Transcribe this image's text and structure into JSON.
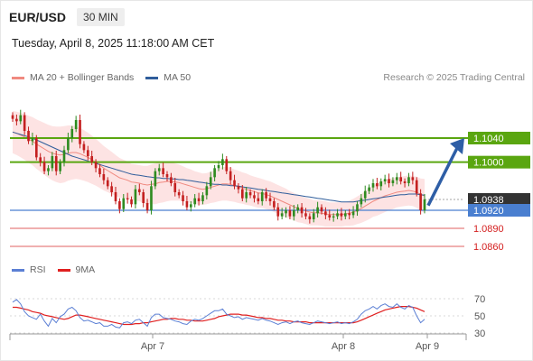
{
  "header": {
    "symbol": "EUR/USD",
    "timeframe": "30 MIN",
    "datetime": "Tuesday, April 8, 2025 11:18:00 AM CET",
    "credit": "Research © 2025 Trading Central"
  },
  "legend_main": [
    {
      "label": "MA 20 + Bollinger Bands",
      "color": "#f08a80"
    },
    {
      "label": "MA 50",
      "color": "#2f5d9b"
    }
  ],
  "legend_rsi": [
    {
      "label": "RSI",
      "color": "#5b7fd4"
    },
    {
      "label": "9MA",
      "color": "#e02020"
    }
  ],
  "colors": {
    "up_candle": "#2e8b20",
    "down_candle": "#c42020",
    "resistance": "#5aa610",
    "pivot": "#4a7fd0",
    "support": "#e06060",
    "bollinger_fill": "#fde3e3",
    "arrow": "#2e5ea6"
  },
  "chart_data": [
    {
      "type": "candlestick",
      "title": "EUR/USD 30 MIN",
      "x_ticks": [
        "Apr 7",
        "Apr 8",
        "Apr 9"
      ],
      "levels": [
        {
          "value": 1.104,
          "label": "1.1040",
          "kind": "resistance"
        },
        {
          "value": 1.1,
          "label": "1.1000",
          "kind": "resistance"
        },
        {
          "value": 1.0938,
          "label": "1.0938",
          "kind": "last_price"
        },
        {
          "value": 1.092,
          "label": "1.0920",
          "kind": "pivot"
        },
        {
          "value": 1.089,
          "label": "1.0890",
          "kind": "support"
        },
        {
          "value": 1.086,
          "label": "1.0860",
          "kind": "support"
        }
      ],
      "close": [
        1.1072,
        1.1068,
        1.1078,
        1.1052,
        1.1035,
        1.104,
        1.1008,
        1.1,
        1.0985,
        1.099,
        1.101,
        1.0985,
        1.1,
        1.102,
        1.104,
        1.1055,
        1.107,
        1.103,
        1.102,
        1.101,
        1.1,
        1.099,
        1.098,
        1.097,
        1.096,
        1.095,
        1.0935,
        1.0922,
        1.094,
        1.0938,
        1.093,
        1.0955,
        1.095,
        1.0932,
        1.092,
        1.096,
        1.0985,
        1.099,
        1.098,
        1.0975,
        1.0965,
        1.095,
        1.0945,
        1.0935,
        1.0925,
        1.093,
        1.094,
        1.0935,
        1.0945,
        1.096,
        1.0975,
        1.099,
        1.0995,
        1.1005,
        1.0985,
        1.097,
        1.096,
        1.0955,
        1.094,
        1.095,
        1.0945,
        1.094,
        1.0935,
        1.095,
        1.094,
        1.0935,
        1.0925,
        1.091,
        1.0915,
        1.092,
        1.091,
        1.092,
        1.0925,
        1.0915,
        1.091,
        1.0905,
        1.0915,
        1.0925,
        1.0918,
        1.0912,
        1.0908,
        1.091,
        1.0915,
        1.091,
        1.0915,
        1.0912,
        1.0918,
        1.093,
        1.094,
        1.0952,
        1.0958,
        1.0965,
        1.096,
        1.0968,
        1.0972,
        1.0965,
        1.097,
        1.0975,
        1.0968,
        1.0965,
        1.0975,
        1.097,
        1.0948,
        1.092,
        1.0938
      ],
      "ma20": [
        1.105,
        1.1048,
        1.1045,
        1.1042,
        1.1038,
        1.1035,
        1.103,
        1.1026,
        1.1022,
        1.1018,
        1.1015,
        1.1013,
        1.1012,
        1.1013,
        1.1015,
        1.1016,
        1.1016,
        1.1014,
        1.1011,
        1.1008,
        1.1004,
        1.1,
        1.0995,
        1.099,
        1.0986,
        1.0982,
        1.0978,
        1.0974,
        1.0972,
        1.097,
        1.0967,
        1.0966,
        1.0965,
        1.0963,
        1.0962,
        1.0963,
        1.0964,
        1.0966,
        1.0967,
        1.0968,
        1.0968,
        1.0967,
        1.0966,
        1.0964,
        1.0962,
        1.096,
        1.0958,
        1.0956,
        1.0955,
        1.0956,
        1.0958,
        1.096,
        1.0962,
        1.0964,
        1.0964,
        1.0963,
        1.0961,
        1.0959,
        1.0957,
        1.0955,
        1.0953,
        1.0951,
        1.0949,
        1.0948,
        1.0946,
        1.0944,
        1.0941,
        1.0938,
        1.0935,
        1.0932,
        1.0929,
        1.0926,
        1.0923,
        1.0921,
        1.0919,
        1.0917,
        1.0916,
        1.0916,
        1.0915,
        1.0914,
        1.0913,
        1.0913,
        1.0913,
        1.0913,
        1.0914,
        1.0915,
        1.0917,
        1.092,
        1.0923,
        1.0927,
        1.0931,
        1.0935,
        1.0938,
        1.0941,
        1.0944,
        1.0946,
        1.0948,
        1.095,
        1.0951,
        1.0952,
        1.0953,
        1.0952,
        1.095,
        1.0946,
        1.0944
      ],
      "ma50": [
        1.105,
        1.1048,
        1.1046,
        1.1044,
        1.1042,
        1.104,
        1.1037,
        1.1034,
        1.1031,
        1.1028,
        1.1025,
        1.1022,
        1.1019,
        1.1016,
        1.1013,
        1.101,
        1.1008,
        1.1006,
        1.1004,
        1.1002,
        1.1,
        1.0998,
        1.0996,
        1.0994,
        1.0992,
        1.099,
        1.0988,
        1.0986,
        1.0984,
        1.0982,
        1.098,
        1.0979,
        1.0978,
        1.0977,
        1.0976,
        1.0975,
        1.0974,
        1.0974,
        1.0973,
        1.0973,
        1.0972,
        1.0972,
        1.0971,
        1.0971,
        1.097,
        1.0969,
        1.0968,
        1.0967,
        1.0966,
        1.0965,
        1.0964,
        1.0963,
        1.0963,
        1.0962,
        1.0962,
        1.0961,
        1.0961,
        1.096,
        1.0959,
        1.0958,
        1.0957,
        1.0956,
        1.0955,
        1.0954,
        1.0953,
        1.0952,
        1.0951,
        1.095,
        1.0949,
        1.0948,
        1.0947,
        1.0946,
        1.0945,
        1.0944,
        1.0943,
        1.0942,
        1.0941,
        1.094,
        1.0939,
        1.0938,
        1.0937,
        1.0936,
        1.0935,
        1.0934,
        1.0934,
        1.0934,
        1.0934,
        1.0935,
        1.0936,
        1.0937,
        1.0938,
        1.0939,
        1.094,
        1.0941,
        1.0942,
        1.0943,
        1.0944,
        1.0945,
        1.0946,
        1.0946,
        1.0947,
        1.0947,
        1.0947,
        1.0946,
        1.0945
      ],
      "bb_width": [
        0.0035,
        0.0036,
        0.0037,
        0.0038,
        0.0039,
        0.004,
        0.0041,
        0.0042,
        0.0043,
        0.0044,
        0.0045,
        0.0046,
        0.0047,
        0.0047,
        0.0046,
        0.0045,
        0.0044,
        0.0043,
        0.0042,
        0.0041,
        0.004,
        0.0039,
        0.0038,
        0.0037,
        0.0036,
        0.0035,
        0.0034,
        0.0033,
        0.0032,
        0.0031,
        0.003,
        0.003,
        0.003,
        0.0031,
        0.0032,
        0.0033,
        0.0034,
        0.0034,
        0.0034,
        0.0033,
        0.0032,
        0.0031,
        0.003,
        0.0029,
        0.0028,
        0.0028,
        0.0027,
        0.0027,
        0.0026,
        0.0026,
        0.0026,
        0.0027,
        0.0027,
        0.0028,
        0.0028,
        0.0028,
        0.0027,
        0.0027,
        0.0026,
        0.0026,
        0.0025,
        0.0025,
        0.0025,
        0.0024,
        0.0024,
        0.0024,
        0.0024,
        0.0024,
        0.0024,
        0.0024,
        0.0023,
        0.0023,
        0.0023,
        0.0022,
        0.0022,
        0.0022,
        0.0021,
        0.0021,
        0.0021,
        0.0021,
        0.002,
        0.002,
        0.002,
        0.002,
        0.002,
        0.0021,
        0.0022,
        0.0023,
        0.0024,
        0.0025,
        0.0026,
        0.0026,
        0.0027,
        0.0027,
        0.0027,
        0.0026,
        0.0026,
        0.0025,
        0.0025,
        0.0025,
        0.0025,
        0.0025,
        0.0026,
        0.0027,
        0.0028
      ]
    },
    {
      "type": "line",
      "title": "RSI",
      "y_ticks": [
        "70",
        "50",
        "30"
      ],
      "ylim": [
        20,
        80
      ],
      "rsi": [
        66,
        69,
        64,
        55,
        50,
        48,
        46,
        52,
        44,
        38,
        47,
        42,
        49,
        52,
        58,
        60,
        56,
        48,
        44,
        45,
        43,
        41,
        42,
        38,
        38,
        40,
        37,
        36,
        42,
        43,
        41,
        45,
        46,
        42,
        38,
        48,
        52,
        52,
        48,
        47,
        46,
        44,
        43,
        41,
        40,
        44,
        46,
        45,
        47,
        50,
        53,
        56,
        56,
        58,
        52,
        50,
        48,
        49,
        46,
        48,
        47,
        46,
        45,
        47,
        45,
        44,
        42,
        40,
        42,
        43,
        41,
        43,
        44,
        42,
        41,
        40,
        42,
        44,
        43,
        42,
        41,
        42,
        43,
        41,
        42,
        41,
        43,
        46,
        52,
        56,
        58,
        61,
        58,
        62,
        64,
        61,
        60,
        64,
        60,
        58,
        62,
        60,
        50,
        42,
        46
      ],
      "ma9": [
        60,
        60,
        59,
        58,
        57,
        55,
        54,
        53,
        51,
        50,
        49,
        48,
        47,
        46,
        47,
        49,
        51,
        51,
        50,
        49,
        48,
        47,
        46,
        45,
        44,
        43,
        42,
        41,
        40,
        40,
        40,
        41,
        41,
        42,
        42,
        43,
        44,
        45,
        46,
        46,
        47,
        47,
        46,
        46,
        45,
        45,
        44,
        44,
        44,
        45,
        46,
        47,
        49,
        50,
        51,
        52,
        52,
        52,
        51,
        51,
        50,
        49,
        48,
        48,
        47,
        47,
        46,
        45,
        45,
        44,
        44,
        43,
        43,
        43,
        43,
        42,
        42,
        42,
        42,
        42,
        42,
        42,
        42,
        42,
        42,
        42,
        42,
        43,
        45,
        47,
        49,
        51,
        53,
        55,
        57,
        58,
        59,
        60,
        61,
        61,
        61,
        60,
        59,
        57,
        55
      ]
    }
  ]
}
